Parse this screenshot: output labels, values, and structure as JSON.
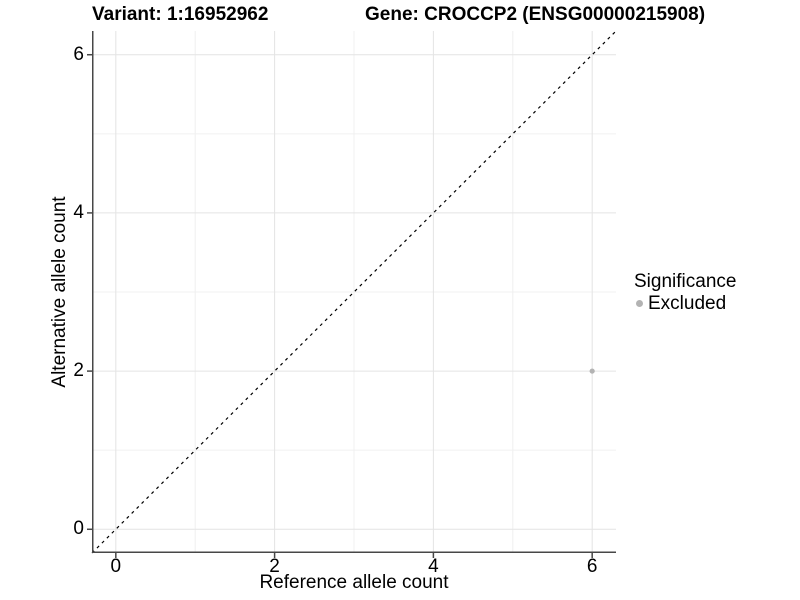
{
  "figure": {
    "title_variant": "Variant: 1:16952962",
    "title_gene": "Gene: CROCCP2 (ENSG00000215908)"
  },
  "chart_data": {
    "type": "scatter",
    "title": "Variant: 1:16952962   Gene: CROCCP2 (ENSG00000215908)",
    "xlabel": "Reference allele count",
    "ylabel": "Alternative allele count",
    "xlim": [
      -0.3,
      6.3
    ],
    "ylim": [
      -0.3,
      6.3
    ],
    "x_ticks": [
      0,
      2,
      4,
      6
    ],
    "y_ticks": [
      0,
      2,
      4,
      6
    ],
    "minor_ticks": [
      1,
      3,
      5
    ],
    "grid": "major and minor, light gray on white",
    "identity_line": {
      "style": "dashed",
      "color": "#000000",
      "from": -0.3,
      "to": 6.3
    },
    "series": [
      {
        "name": "Excluded",
        "color": "#b3b3b3",
        "point_radius": 2.6,
        "points": [
          [
            6,
            2
          ]
        ]
      }
    ],
    "legend": {
      "title": "Significance",
      "position": "right",
      "items": [
        {
          "label": "Excluded",
          "color": "#b3b3b3"
        }
      ]
    }
  },
  "colors": {
    "background": "#ffffff",
    "grid_major": "#e4e4e4",
    "grid_minor": "#f0f0f0",
    "axis_line": "#474747",
    "text": "#000000"
  }
}
